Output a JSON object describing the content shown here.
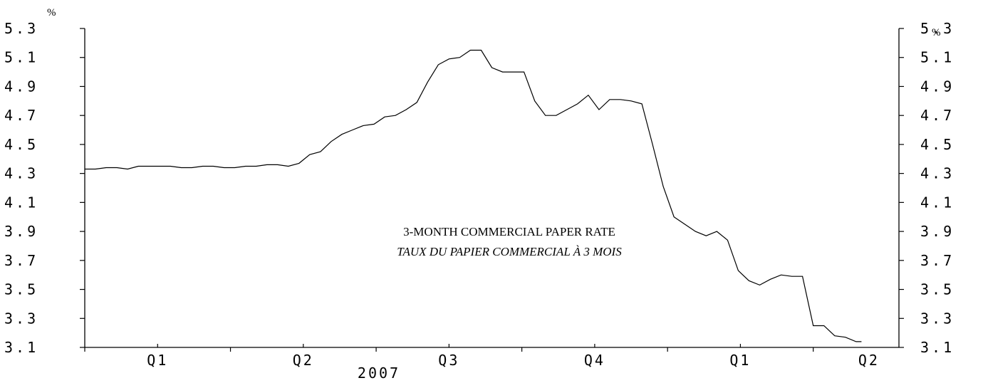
{
  "chart_data": {
    "type": "line",
    "title": "3-MONTH COMMERCIAL PAPER RATE",
    "subtitle": "TAUX DU PAPIER COMMERCIAL À 3 MOIS",
    "y_unit_left": "%",
    "y_unit_right": "%",
    "ylim": [
      3.1,
      5.3
    ],
    "y_ticks": [
      "5.3",
      "5.1",
      "4.9",
      "4.7",
      "4.5",
      "4.3",
      "4.1",
      "3.9",
      "3.7",
      "3.5",
      "3.3",
      "3.1"
    ],
    "x_quarter_labels": [
      "Q1",
      "Q2",
      "Q3",
      "Q4",
      "Q1",
      "Q2"
    ],
    "x_year_label": "2007",
    "x_range_weeks": [
      0,
      76
    ],
    "x_tick_weeks": [
      0,
      13.6,
      27.2,
      40.8,
      54.4,
      68
    ],
    "grid": false,
    "series": [
      {
        "values": [
          [
            0.0,
            4.33
          ],
          [
            1.0,
            4.33
          ],
          [
            2.0,
            4.34
          ],
          [
            3.0,
            4.34
          ],
          [
            4.0,
            4.33
          ],
          [
            5.0,
            4.35
          ],
          [
            6.0,
            4.35
          ],
          [
            7.0,
            4.35
          ],
          [
            8.0,
            4.35
          ],
          [
            9.0,
            4.34
          ],
          [
            10.0,
            4.34
          ],
          [
            11.0,
            4.35
          ],
          [
            12.0,
            4.35
          ],
          [
            13.0,
            4.34
          ],
          [
            14.0,
            4.34
          ],
          [
            15.0,
            4.35
          ],
          [
            16.0,
            4.35
          ],
          [
            17.0,
            4.36
          ],
          [
            18.0,
            4.36
          ],
          [
            19.0,
            4.35
          ],
          [
            20.0,
            4.37
          ],
          [
            21.0,
            4.43
          ],
          [
            22.0,
            4.45
          ],
          [
            23.0,
            4.52
          ],
          [
            24.0,
            4.57
          ],
          [
            25.0,
            4.6
          ],
          [
            26.0,
            4.63
          ],
          [
            27.0,
            4.64
          ],
          [
            28.0,
            4.69
          ],
          [
            29.0,
            4.7
          ],
          [
            30.0,
            4.74
          ],
          [
            31.0,
            4.79
          ],
          [
            32.0,
            4.93
          ],
          [
            33.0,
            5.05
          ],
          [
            34.0,
            5.09
          ],
          [
            35.0,
            5.1
          ],
          [
            36.0,
            5.15
          ],
          [
            37.0,
            5.15
          ],
          [
            38.0,
            5.03
          ],
          [
            39.0,
            5.0
          ],
          [
            40.0,
            5.0
          ],
          [
            41.0,
            5.0
          ],
          [
            42.0,
            4.8
          ],
          [
            43.0,
            4.7
          ],
          [
            44.0,
            4.7
          ],
          [
            45.0,
            4.74
          ],
          [
            46.0,
            4.78
          ],
          [
            47.0,
            4.84
          ],
          [
            48.0,
            4.74
          ],
          [
            49.0,
            4.81
          ],
          [
            50.0,
            4.81
          ],
          [
            51.0,
            4.8
          ],
          [
            52.0,
            4.78
          ],
          [
            53.0,
            4.5
          ],
          [
            54.0,
            4.21
          ],
          [
            55.0,
            4.0
          ],
          [
            56.0,
            3.95
          ],
          [
            57.0,
            3.9
          ],
          [
            58.0,
            3.87
          ],
          [
            59.0,
            3.9
          ],
          [
            60.0,
            3.84
          ],
          [
            61.0,
            3.63
          ],
          [
            62.0,
            3.56
          ],
          [
            63.0,
            3.53
          ],
          [
            64.0,
            3.57
          ],
          [
            65.0,
            3.6
          ],
          [
            66.0,
            3.59
          ],
          [
            67.0,
            3.59
          ],
          [
            68.0,
            3.25
          ],
          [
            69.0,
            3.25
          ],
          [
            70.0,
            3.18
          ],
          [
            71.0,
            3.17
          ],
          [
            72.0,
            3.14
          ],
          [
            72.5,
            3.14
          ]
        ]
      }
    ]
  }
}
